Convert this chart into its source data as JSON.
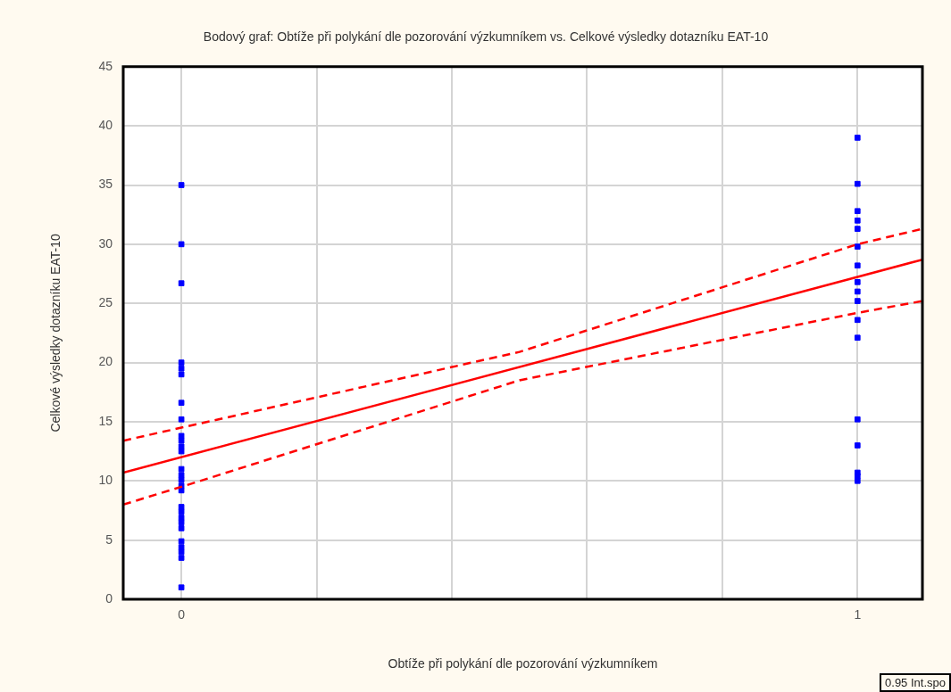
{
  "chart_data": {
    "type": "scatter",
    "title": "Bodový graf: Obtíže při polykání dle pozorování výzkumníkem vs. Celkové výsledky dotazníku EAT-10",
    "xlabel": "Obtíže při polykání dle pozorování výzkumníkem",
    "ylabel": "Celkové výsledky dotazníku EAT-10",
    "xlim": [
      -0.086,
      1.096
    ],
    "xticks": [
      0,
      {
        "value": 0.2,
        "label": null
      },
      {
        "value": 0.4,
        "label": null
      },
      {
        "value": 0.6,
        "label": null
      },
      {
        "value": 0.8,
        "label": null
      },
      1
    ],
    "ylim": [
      0,
      45
    ],
    "yticks": [
      0,
      5,
      10,
      15,
      20,
      25,
      30,
      35,
      40,
      45
    ],
    "grid": true,
    "marker": "square",
    "series": [
      {
        "color": "#0000ff",
        "x": [
          0,
          0,
          0,
          0,
          0,
          0,
          0,
          0,
          0,
          0,
          0,
          0,
          0,
          0,
          0,
          0,
          0,
          0,
          0,
          0,
          0,
          0,
          0,
          0,
          0,
          0,
          0
        ],
        "values": [
          35,
          30,
          26.7,
          20,
          19.5,
          19,
          16.6,
          15.2,
          13.8,
          13.4,
          12.9,
          12.5,
          11,
          10.5,
          10.1,
          9.6,
          9.2,
          7.8,
          7.4,
          6.9,
          6.5,
          6,
          4.9,
          4.4,
          4,
          3.5,
          1
        ]
      },
      {
        "color": "#0000ff",
        "x": [
          1,
          1,
          1,
          1,
          1,
          1,
          1,
          1,
          1,
          1,
          1,
          1,
          1,
          1,
          1,
          1,
          1
        ],
        "values": [
          39,
          35.1,
          32.8,
          32,
          31.3,
          29.8,
          28.2,
          26.8,
          26,
          25.2,
          23.6,
          22.1,
          15.2,
          13,
          10.7,
          10.4,
          10
        ]
      },
      {
        "type": "line",
        "color": "#ff0000",
        "line_style": "solid",
        "marker": "none",
        "x": [
          -0.086,
          1.096
        ],
        "values": [
          10.7,
          28.7
        ]
      },
      {
        "type": "line",
        "color": "#ff0000",
        "line_style": "dashed",
        "marker": "none",
        "x": [
          -0.086,
          0,
          0.5,
          1,
          1.096
        ],
        "values": [
          13.4,
          14.5,
          20.9,
          30,
          31.3
        ]
      },
      {
        "type": "line",
        "color": "#ff0000",
        "line_style": "dashed",
        "marker": "none",
        "x": [
          -0.086,
          0,
          0.5,
          1,
          1.096
        ],
        "values": [
          8,
          9.5,
          18.5,
          24.2,
          25.2
        ]
      }
    ],
    "annotations": [
      "0.95 Int.spo"
    ]
  }
}
